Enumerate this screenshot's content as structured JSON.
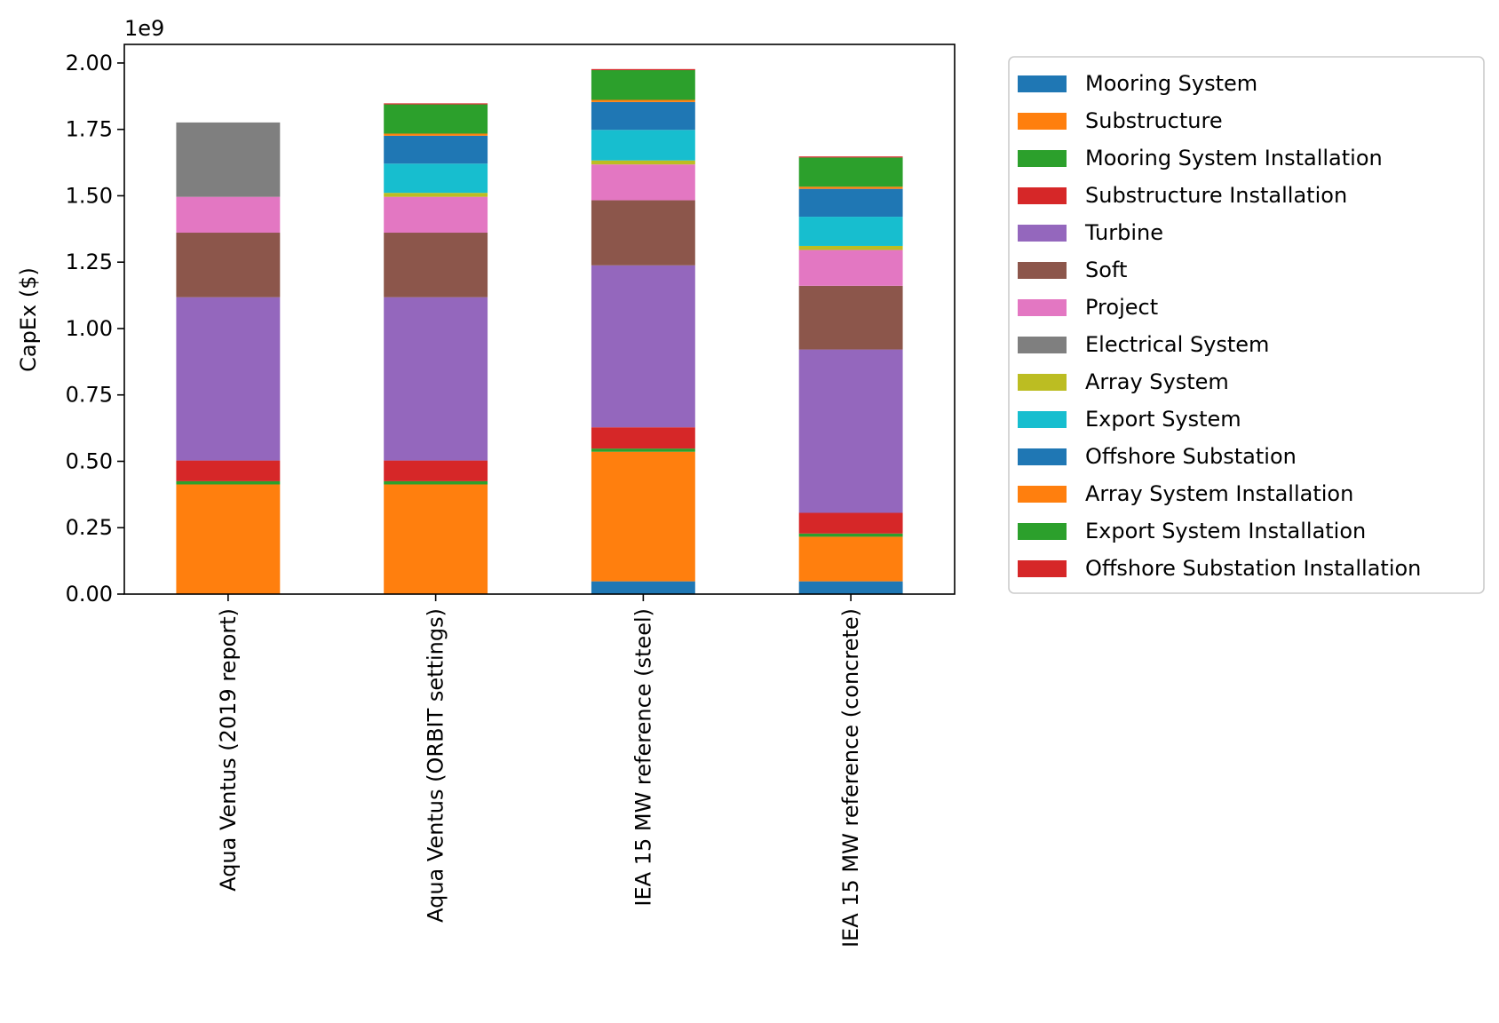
{
  "chart_data": {
    "type": "bar",
    "stacked": true,
    "ylabel": "CapEx ($)",
    "xlabel": "",
    "y_multiplier": "1e9",
    "ylim": [
      0,
      2.07
    ],
    "yticks": [
      "0.00",
      "0.25",
      "0.50",
      "0.75",
      "1.00",
      "1.25",
      "1.50",
      "1.75",
      "2.00"
    ],
    "legend_position": "outside-right",
    "grid": false,
    "categories": [
      "Aqua Ventus (2019 report)",
      "Aqua Ventus (ORBIT settings)",
      "IEA 15 MW reference (steel)",
      "IEA 15 MW reference (concrete)"
    ],
    "series": [
      {
        "name": "Mooring System",
        "color": "#1f77b4",
        "values": [
          0,
          0,
          0.048,
          0.048
        ]
      },
      {
        "name": "Substructure",
        "color": "#ff7f0e",
        "values": [
          0.413,
          0.413,
          0.488,
          0.168
        ]
      },
      {
        "name": "Mooring System Installation",
        "color": "#2ca02c",
        "values": [
          0.012,
          0.012,
          0.012,
          0.012
        ]
      },
      {
        "name": "Substructure Installation",
        "color": "#d62728",
        "values": [
          0.078,
          0.078,
          0.08,
          0.078
        ]
      },
      {
        "name": "Turbine",
        "color": "#9467bd",
        "values": [
          0.615,
          0.615,
          0.61,
          0.615
        ]
      },
      {
        "name": "Soft",
        "color": "#8c564b",
        "values": [
          0.243,
          0.243,
          0.245,
          0.24
        ]
      },
      {
        "name": "Project",
        "color": "#e377c2",
        "values": [
          0.135,
          0.135,
          0.135,
          0.135
        ]
      },
      {
        "name": "Electrical System",
        "color": "#7f7f7f",
        "values": [
          0.28,
          0,
          0,
          0
        ]
      },
      {
        "name": "Array System",
        "color": "#bcbd22",
        "values": [
          0,
          0.015,
          0.015,
          0.015
        ]
      },
      {
        "name": "Export System",
        "color": "#17becf",
        "values": [
          0,
          0.11,
          0.115,
          0.11
        ]
      },
      {
        "name": "Offshore Substation",
        "color": "#1f77b4",
        "values": [
          0,
          0.105,
          0.105,
          0.105
        ]
      },
      {
        "name": "Array System Installation",
        "color": "#ff7f0e",
        "values": [
          0,
          0.008,
          0.008,
          0.008
        ]
      },
      {
        "name": "Export System Installation",
        "color": "#2ca02c",
        "values": [
          0,
          0.11,
          0.112,
          0.11
        ]
      },
      {
        "name": "Offshore Substation Installation",
        "color": "#d62728",
        "values": [
          0,
          0.004,
          0.004,
          0.004
        ]
      }
    ]
  }
}
